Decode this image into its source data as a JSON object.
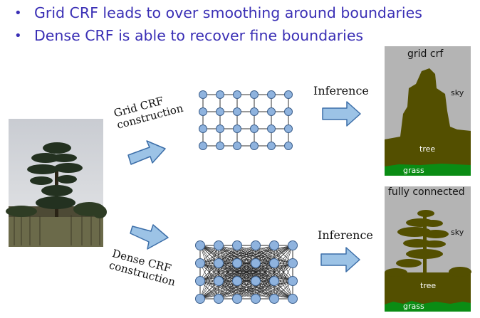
{
  "bullets": [
    "Grid CRF leads to over smoothing around boundaries",
    "Dense CRF is able to recover fine boundaries"
  ],
  "labels": {
    "grid_construction": "Grid CRF construction",
    "dense_construction": "Dense CRF construction",
    "inference_top": "Inference",
    "inference_bottom": "Inference"
  },
  "results": {
    "grid": {
      "title": "grid crf",
      "sky": "sky",
      "tree": "tree",
      "grass": "grass"
    },
    "dense": {
      "title": "fully connected",
      "sky": "sky",
      "tree": "tree",
      "grass": "grass"
    }
  },
  "colors": {
    "bullet_text": "#3a2fb5",
    "arrow_fill": "#9cc3e6",
    "arrow_stroke": "#3c6ea8",
    "node_fill": "#8fb3de",
    "node_stroke": "#3c5f8c",
    "sky": "#b4b4b4",
    "tree": "#534f00",
    "grass": "#0a8c14"
  }
}
